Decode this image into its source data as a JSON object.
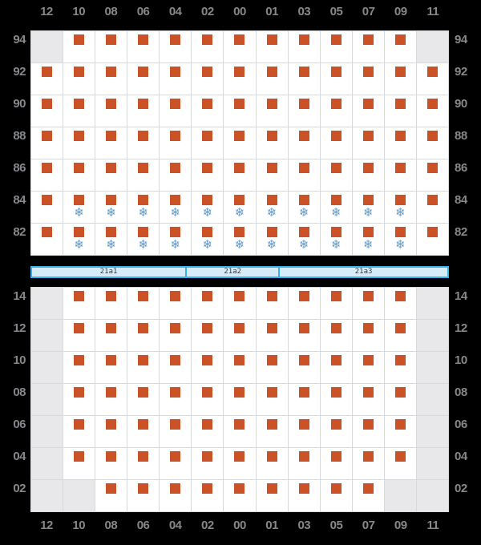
{
  "colors": {
    "background": "#000000",
    "occupied_marker": "#cb5227",
    "snowflake_icon": "#5b9bd5",
    "cell": "#ffffff",
    "cell_empty": "#e8e8ea",
    "gridline": "#d8d9db",
    "label_text": "#85878b",
    "pier_fill": "#d6ecf8",
    "pier_border": "#3cb0e8",
    "pier_text": "#3a3a3a"
  },
  "icons": {
    "snowflake": "❄",
    "occupied": "orange-square"
  },
  "columns": [
    "12",
    "10",
    "08",
    "06",
    "04",
    "02",
    "00",
    "01",
    "03",
    "05",
    "07",
    "09",
    "11"
  ],
  "top_grid": {
    "rows": [
      {
        "label": "94",
        "cells": [
          "empty",
          "occupied",
          "occupied",
          "occupied",
          "occupied",
          "occupied",
          "occupied",
          "occupied",
          "occupied",
          "occupied",
          "occupied",
          "occupied",
          "empty"
        ]
      },
      {
        "label": "92",
        "cells": [
          "occupied",
          "occupied",
          "occupied",
          "occupied",
          "occupied",
          "occupied",
          "occupied",
          "occupied",
          "occupied",
          "occupied",
          "occupied",
          "occupied",
          "occupied"
        ]
      },
      {
        "label": "90",
        "cells": [
          "occupied",
          "occupied",
          "occupied",
          "occupied",
          "occupied",
          "occupied",
          "occupied",
          "occupied",
          "occupied",
          "occupied",
          "occupied",
          "occupied",
          "occupied"
        ]
      },
      {
        "label": "88",
        "cells": [
          "occupied",
          "occupied",
          "occupied",
          "occupied",
          "occupied",
          "occupied",
          "occupied",
          "occupied",
          "occupied",
          "occupied",
          "occupied",
          "occupied",
          "occupied"
        ]
      },
      {
        "label": "86",
        "cells": [
          "occupied",
          "occupied",
          "occupied",
          "occupied",
          "occupied",
          "occupied",
          "occupied",
          "occupied",
          "occupied",
          "occupied",
          "occupied",
          "occupied",
          "occupied"
        ]
      },
      {
        "label": "84",
        "cells": [
          "occupied",
          "occupied-winter",
          "occupied-winter",
          "occupied-winter",
          "occupied-winter",
          "occupied-winter",
          "occupied-winter",
          "occupied-winter",
          "occupied-winter",
          "occupied-winter",
          "occupied-winter",
          "occupied-winter",
          "occupied"
        ]
      },
      {
        "label": "82",
        "cells": [
          "occupied",
          "occupied-winter",
          "occupied-winter",
          "occupied-winter",
          "occupied-winter",
          "occupied-winter",
          "occupied-winter",
          "occupied-winter",
          "occupied-winter",
          "occupied-winter",
          "occupied-winter",
          "occupied-winter",
          "occupied"
        ]
      }
    ]
  },
  "pier": {
    "segments": [
      {
        "label": "21a1",
        "width_pct": 37.3
      },
      {
        "label": "21a2",
        "width_pct": 22.4
      },
      {
        "label": "21a3",
        "width_pct": 40.3
      }
    ]
  },
  "bottom_grid": {
    "rows": [
      {
        "label": "14",
        "cells": [
          "empty",
          "occupied",
          "occupied",
          "occupied",
          "occupied",
          "occupied",
          "occupied",
          "occupied",
          "occupied",
          "occupied",
          "occupied",
          "occupied",
          "empty"
        ]
      },
      {
        "label": "12",
        "cells": [
          "empty",
          "occupied",
          "occupied",
          "occupied",
          "occupied",
          "occupied",
          "occupied",
          "occupied",
          "occupied",
          "occupied",
          "occupied",
          "occupied",
          "empty"
        ]
      },
      {
        "label": "10",
        "cells": [
          "empty",
          "occupied",
          "occupied",
          "occupied",
          "occupied",
          "occupied",
          "occupied",
          "occupied",
          "occupied",
          "occupied",
          "occupied",
          "occupied",
          "empty"
        ]
      },
      {
        "label": "08",
        "cells": [
          "empty",
          "occupied",
          "occupied",
          "occupied",
          "occupied",
          "occupied",
          "occupied",
          "occupied",
          "occupied",
          "occupied",
          "occupied",
          "occupied",
          "empty"
        ]
      },
      {
        "label": "06",
        "cells": [
          "empty",
          "occupied",
          "occupied",
          "occupied",
          "occupied",
          "occupied",
          "occupied",
          "occupied",
          "occupied",
          "occupied",
          "occupied",
          "occupied",
          "empty"
        ]
      },
      {
        "label": "04",
        "cells": [
          "empty",
          "occupied",
          "occupied",
          "occupied",
          "occupied",
          "occupied",
          "occupied",
          "occupied",
          "occupied",
          "occupied",
          "occupied",
          "occupied",
          "empty"
        ]
      },
      {
        "label": "02",
        "cells": [
          "empty",
          "empty",
          "occupied",
          "occupied",
          "occupied",
          "occupied",
          "occupied",
          "occupied",
          "occupied",
          "occupied",
          "occupied",
          "empty",
          "empty"
        ]
      }
    ]
  }
}
